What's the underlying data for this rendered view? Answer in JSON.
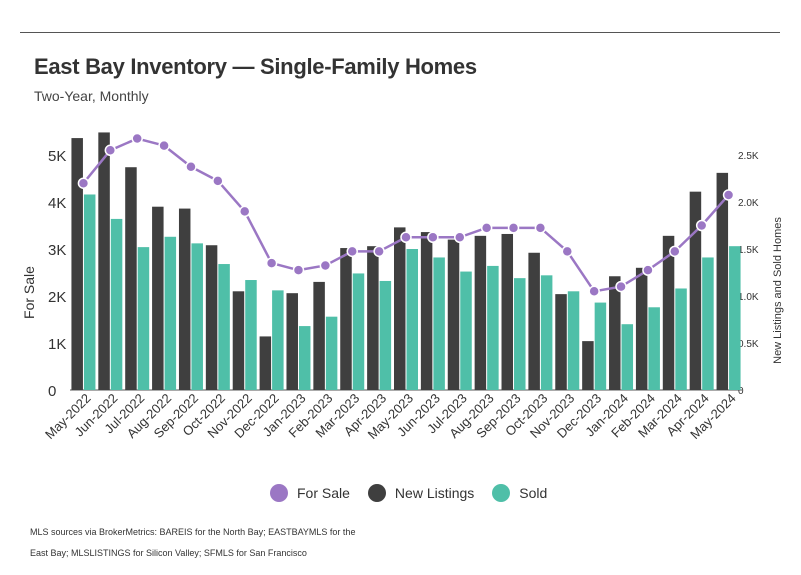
{
  "title": "East Bay Inventory — Single-Family Homes",
  "subtitle": "Two-Year, Monthly",
  "footer": "MLS sources via BrokerMetrics: BAREIS for the North Bay; EASTBAYMLS for the East Bay; MLSLISTINGS for Silicon Valley; SFMLS for San Francisco",
  "colors": {
    "for_sale": "#9b77c4",
    "new_listings": "#3f3f3f",
    "sold": "#4fbfa8"
  },
  "chart_data": {
    "type": "bar",
    "categories": [
      "May-2022",
      "Jun-2022",
      "Jul-2022",
      "Aug-2022",
      "Sep-2022",
      "Oct-2022",
      "Nov-2022",
      "Dec-2022",
      "Jan-2023",
      "Feb-2023",
      "Mar-2023",
      "Apr-2023",
      "May-2023",
      "Jun-2023",
      "Jul-2023",
      "Aug-2023",
      "Sep-2023",
      "Oct-2023",
      "Nov-2023",
      "Dec-2023",
      "Jan-2024",
      "Feb-2024",
      "Mar-2024",
      "Apr-2024",
      "May-2024"
    ],
    "ylabel": "For Sale",
    "y2label": "New Listings and Sold Homes",
    "ylim": [
      0,
      5000
    ],
    "y2lim": [
      0,
      2500
    ],
    "yticks": [
      "0",
      "1K",
      "2K",
      "3K",
      "4K",
      "5K"
    ],
    "y2ticks": [
      "0",
      "0.5K",
      "1.0K",
      "1.5K",
      "2.0K",
      "2.5K"
    ],
    "legend_position": "bottom",
    "series": [
      {
        "name": "For Sale",
        "kind": "line",
        "axis": "left",
        "values": [
          4400,
          5100,
          5350,
          5200,
          4750,
          4450,
          3800,
          2700,
          2550,
          2650,
          2950,
          2950,
          3250,
          3250,
          3250,
          3450,
          3450,
          3450,
          2950,
          2100,
          2200,
          2550,
          2950,
          3500,
          4150
        ]
      },
      {
        "name": "New Listings",
        "kind": "bar",
        "axis": "right",
        "values": [
          2680,
          2740,
          2370,
          1950,
          1930,
          1540,
          1050,
          570,
          1030,
          1150,
          1510,
          1530,
          1730,
          1680,
          1600,
          1640,
          1660,
          1460,
          1020,
          520,
          1210,
          1300,
          1640,
          2110,
          2310
        ]
      },
      {
        "name": "Sold",
        "kind": "bar",
        "axis": "right",
        "values": [
          2080,
          1820,
          1520,
          1630,
          1560,
          1340,
          1170,
          1060,
          680,
          780,
          1240,
          1160,
          1500,
          1410,
          1260,
          1320,
          1190,
          1220,
          1050,
          930,
          700,
          880,
          1080,
          1410,
          1530
        ]
      }
    ]
  }
}
